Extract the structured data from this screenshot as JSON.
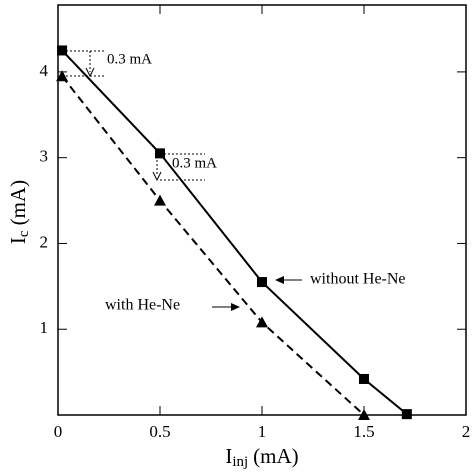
{
  "chart_data": {
    "type": "line",
    "x_label": {
      "main": "I",
      "sub": "inj",
      "unit": "(mA)"
    },
    "y_label": {
      "main": "I",
      "sub": "c",
      "unit": "(mA)"
    },
    "xlim": [
      0,
      2
    ],
    "ylim": [
      0,
      4.78
    ],
    "xticks": [
      0,
      0.5,
      1,
      1.5,
      2
    ],
    "yticks": [
      1,
      2,
      3,
      4
    ],
    "series": [
      {
        "name": "without He-Ne",
        "color": "#000000",
        "dash": false,
        "marker": "square",
        "x": [
          0.02,
          0.5,
          1.0,
          1.5,
          1.71
        ],
        "values": [
          4.25,
          3.05,
          1.55,
          0.42,
          0.01
        ]
      },
      {
        "name": "with He-Ne",
        "color": "#000000",
        "dash": true,
        "marker": "triangle",
        "x": [
          0.02,
          0.5,
          1.0,
          1.5
        ],
        "values": [
          3.95,
          2.5,
          1.08,
          0.0
        ]
      }
    ],
    "annotations": [
      "0.3 mA",
      "0.3 mA"
    ]
  }
}
